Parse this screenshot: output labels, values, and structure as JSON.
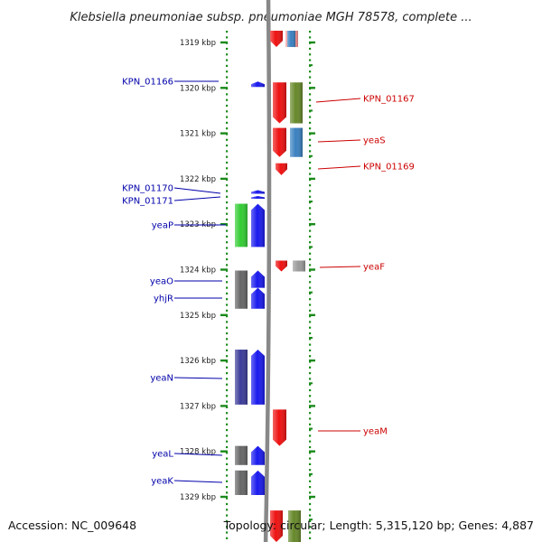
{
  "title": "Klebsiella pneumoniae subsp. pneumoniae MGH 78578, complete ...",
  "footer": {
    "accession": "Accession: NC_009648",
    "summary": "Topology: circular; Length: 5,315,120 bp; Genes: 4,887"
  },
  "colors": {
    "forward_label": "#cc0000",
    "reverse_label": "#0000aa",
    "tick": "#1a8a1a",
    "backbone": "#888888"
  },
  "scale": {
    "unit": "kbp",
    "ticks": [
      1319,
      1320,
      1321,
      1322,
      1323,
      1324,
      1325,
      1326,
      1327,
      1328,
      1329
    ]
  },
  "reverse_genes": [
    {
      "name": "KPN_01166",
      "start_kbp": 1319.86,
      "end_kbp": 1319.98,
      "color": "#1a1aee",
      "shape": "arrow"
    },
    {
      "name": "KPN_01170",
      "start_kbp": 1322.25,
      "end_kbp": 1322.33,
      "color": "#1a1aee",
      "shape": "arrow"
    },
    {
      "name": "KPN_01171",
      "start_kbp": 1322.38,
      "end_kbp": 1322.44,
      "color": "#1a1aee",
      "shape": "arrow"
    },
    {
      "name": "yeaP",
      "start_kbp": 1322.55,
      "end_kbp": 1323.5,
      "color": "#1a1aee",
      "shape": "arrow"
    },
    {
      "name": "yeaO",
      "start_kbp": 1324.02,
      "end_kbp": 1324.4,
      "color": "#1a1aee",
      "shape": "arrow"
    },
    {
      "name": "yhjR",
      "start_kbp": 1324.4,
      "end_kbp": 1324.86,
      "color": "#1a1aee",
      "shape": "arrow"
    },
    {
      "name": "yeaN",
      "start_kbp": 1325.76,
      "end_kbp": 1326.97,
      "color": "#1a1aee",
      "shape": "arrow"
    },
    {
      "name": "yeaL",
      "start_kbp": 1327.88,
      "end_kbp": 1328.3,
      "color": "#1a1aee",
      "shape": "arrow"
    },
    {
      "name": "yeaK",
      "start_kbp": 1328.42,
      "end_kbp": 1328.96,
      "color": "#1a1aee",
      "shape": "arrow"
    }
  ],
  "forward_genes": [
    {
      "name": "KPN_01167",
      "start_kbp": 1319.88,
      "end_kbp": 1320.78,
      "color": "#ee1111",
      "shape": "arrow"
    },
    {
      "name": "yeaS",
      "start_kbp": 1320.88,
      "end_kbp": 1321.52,
      "color": "#ee1111",
      "shape": "arrow"
    },
    {
      "name": "KPN_01169",
      "start_kbp": 1321.66,
      "end_kbp": 1321.92,
      "color": "#ee1111",
      "shape": "arrow"
    },
    {
      "name": "yeaF",
      "start_kbp": 1323.8,
      "end_kbp": 1324.04,
      "color": "#ee1111",
      "shape": "arrow"
    },
    {
      "name": "yeaM",
      "start_kbp": 1327.08,
      "end_kbp": 1327.88,
      "color": "#ee1111",
      "shape": "arrow"
    }
  ],
  "reverse_features": [
    {
      "start_kbp": 1322.55,
      "end_kbp": 1323.5,
      "color": "#33cc33"
    },
    {
      "start_kbp": 1324.02,
      "end_kbp": 1324.86,
      "color": "#666666"
    },
    {
      "start_kbp": 1325.76,
      "end_kbp": 1326.97,
      "color": "#3b3b99"
    },
    {
      "start_kbp": 1327.88,
      "end_kbp": 1328.3,
      "color": "#666666"
    },
    {
      "start_kbp": 1328.42,
      "end_kbp": 1328.96,
      "color": "#666666"
    }
  ],
  "forward_features": [
    {
      "start_kbp": 1318.2,
      "end_kbp": 1319.1,
      "color": "#ff9999"
    },
    {
      "start_kbp": 1318.2,
      "end_kbp": 1319.1,
      "color": "#3a80c0"
    },
    {
      "start_kbp": 1319.88,
      "end_kbp": 1320.78,
      "color": "#66882a"
    },
    {
      "start_kbp": 1320.88,
      "end_kbp": 1321.52,
      "color": "#3a80c0"
    },
    {
      "start_kbp": 1323.8,
      "end_kbp": 1324.04,
      "color": "#999999"
    },
    {
      "start_kbp": 1329.3,
      "end_kbp": 1330.0,
      "color": "#66882a"
    }
  ],
  "forward_top_genes": [
    {
      "start_kbp": 1318.2,
      "end_kbp": 1319.1,
      "color": "#ee1111"
    },
    {
      "start_kbp": 1329.3,
      "end_kbp": 1330.0,
      "color": "#ee1111"
    }
  ]
}
